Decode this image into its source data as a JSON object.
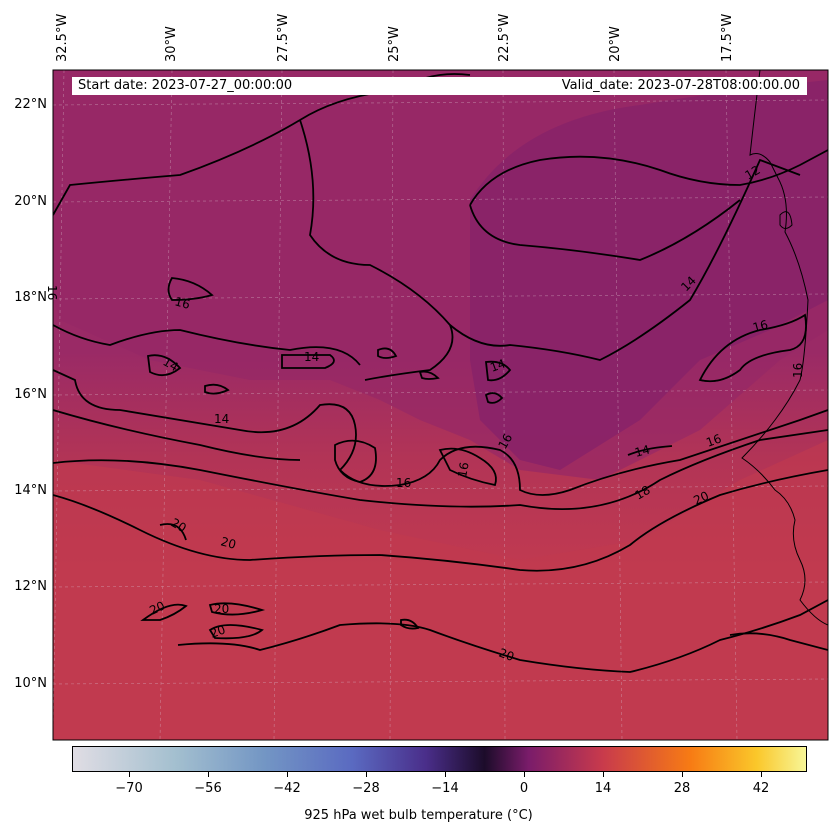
{
  "header": {
    "start_date": "Start date: 2023-07-27_00:00:00",
    "valid_date": "Valid_date: 2023-07-28T08:00:00.00"
  },
  "map": {
    "longitude_labels": [
      "32.5°W",
      "30°W",
      "27.5°W",
      "25°W",
      "22.5°W",
      "20°W",
      "17.5°W"
    ],
    "latitude_labels": [
      "22°N",
      "20°N",
      "18°N",
      "16°N",
      "14°N",
      "12°N",
      "10°N"
    ],
    "contour_labels": [
      "12",
      "14",
      "14",
      "14",
      "14",
      "14",
      "14",
      "16",
      "16",
      "16",
      "16",
      "16",
      "16",
      "16",
      "16",
      "18",
      "20",
      "20",
      "20",
      "20",
      "20",
      "20",
      "20"
    ],
    "colors": {
      "fill_cool": "#8a2468",
      "fill_mid": "#a42e62",
      "fill_warm": "#c2394f",
      "contour": "#000000",
      "coast": "#000000"
    }
  },
  "colorbar": {
    "title": "925 hPa wet bulb temperature ($^\\circ$C)",
    "title_display": "925 hPa wet bulb temperature (°C)",
    "tick_labels": [
      "−70",
      "−56",
      "−42",
      "−28",
      "−14",
      "0",
      "14",
      "28",
      "42"
    ],
    "colormap_stops": [
      "#dcdce4",
      "#8cb4cc",
      "#5a6fc4",
      "#5a3aa8",
      "#2a0c40",
      "#3c0a5a",
      "#a02c62",
      "#e8552c",
      "#f9a30f",
      "#f7f79a"
    ]
  }
}
